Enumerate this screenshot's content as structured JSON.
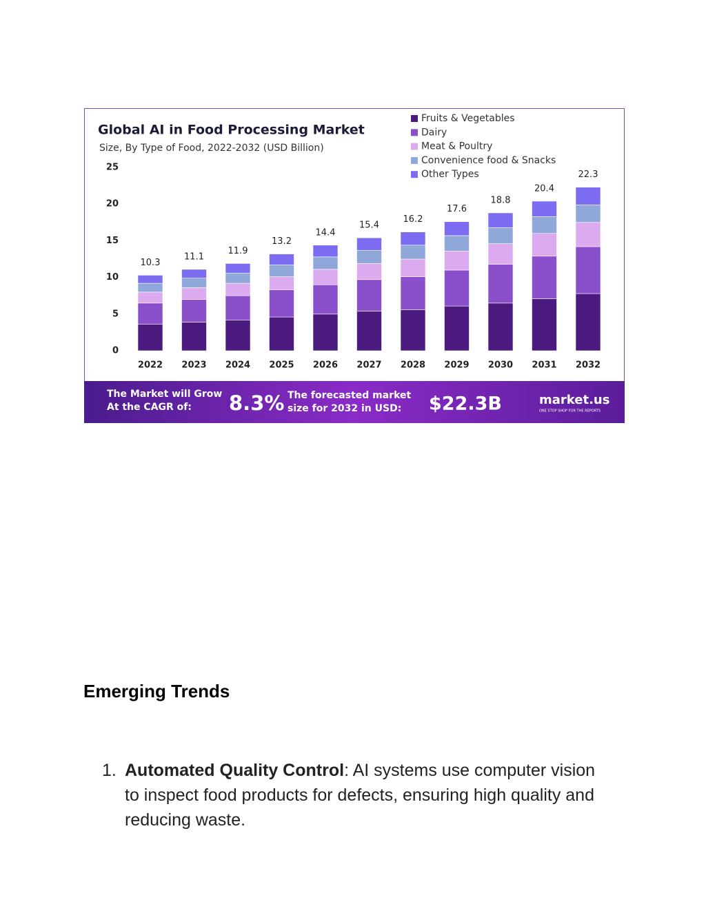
{
  "chart_data": {
    "type": "stacked-bar",
    "title": "Global AI in Food Processing Market",
    "subtitle": "Size, By Type of Food, 2022-2032 (USD Billion)",
    "categories": [
      "2022",
      "2023",
      "2024",
      "2025",
      "2026",
      "2027",
      "2028",
      "2029",
      "2030",
      "2031",
      "2032"
    ],
    "series": [
      {
        "name": "Fruits & Vegetables",
        "color": "#4b1a7e",
        "values": [
          3.6,
          3.9,
          4.2,
          4.6,
          5.0,
          5.4,
          5.6,
          6.1,
          6.5,
          7.1,
          7.8
        ]
      },
      {
        "name": "Dairy",
        "color": "#8a4fca",
        "values": [
          2.9,
          3.1,
          3.3,
          3.7,
          4.0,
          4.3,
          4.5,
          4.9,
          5.3,
          5.8,
          6.4
        ]
      },
      {
        "name": "Meat & Poultry",
        "color": "#dcaaee",
        "values": [
          1.5,
          1.6,
          1.7,
          1.8,
          2.1,
          2.2,
          2.4,
          2.6,
          2.8,
          3.1,
          3.3
        ]
      },
      {
        "name": "Convenience food & Snacks",
        "color": "#8fa8d9",
        "values": [
          1.2,
          1.3,
          1.4,
          1.6,
          1.7,
          1.8,
          1.9,
          2.1,
          2.2,
          2.3,
          2.4
        ]
      },
      {
        "name": "Other Types",
        "color": "#7b6cf2",
        "values": [
          1.1,
          1.2,
          1.3,
          1.5,
          1.6,
          1.7,
          1.8,
          1.9,
          2.0,
          2.1,
          2.4
        ]
      }
    ],
    "totals": [
      10.3,
      11.1,
      11.9,
      13.2,
      14.4,
      15.4,
      16.2,
      17.6,
      18.8,
      20.4,
      22.3
    ],
    "ylim": [
      0,
      25
    ],
    "yticks": [
      0,
      5,
      10,
      15,
      20,
      25
    ],
    "grid": false,
    "legend": "top-right"
  },
  "banner": {
    "cagr_text": "The Market will Grow At the CAGR of:",
    "cagr": "8.3%",
    "forecast_text": "The forecasted market size for 2032 in USD:",
    "forecast": "$22.3B",
    "brand": "market.us",
    "tagline": "ONE STOP SHOP FOR THE REPORTS"
  },
  "document": {
    "heading": "Emerging Trends",
    "list": [
      {
        "marker": "1.",
        "term": "Automated Quality Control",
        "text": ": AI systems use computer vision to inspect food products for defects, ensuring high quality and reducing waste."
      }
    ]
  }
}
